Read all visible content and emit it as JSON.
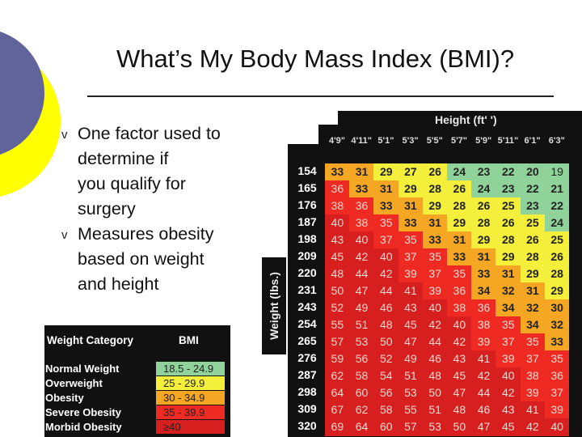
{
  "slide": {
    "title": "What’s My Body Mass Index (BMI)?",
    "bullets": [
      {
        "lines": [
          "One factor used to",
          "determine if",
          "you qualify for",
          "surgery"
        ]
      },
      {
        "lines": [
          "Measures obesity",
          "based on weight",
          "and height"
        ]
      }
    ],
    "bullet_marker": "v"
  },
  "legend": {
    "header": {
      "category": "Weight Category",
      "bmi": "BMI"
    },
    "rows": [
      {
        "category": "Normal Weight",
        "range": "18.5 - 24.9",
        "color": "#8fd29a"
      },
      {
        "category": "Overweight",
        "range": "25 - 29.9",
        "color": "#f4ef3a"
      },
      {
        "category": "Obesity",
        "range": "30 - 34.9",
        "color": "#f5a623"
      },
      {
        "category": "Severe Obesity",
        "range": "35 - 39.9",
        "color": "#ee2a22"
      },
      {
        "category": "Morbid Obesity",
        "range": "≥40",
        "color": "#d71f1f"
      }
    ]
  },
  "bmi_table": {
    "height_title": "Height (ft' ')",
    "weight_title": "Weight (lbs.)",
    "heights": [
      "4'9\"",
      "4'11\"",
      "5'1\"",
      "5'3\"",
      "5'5\"",
      "5'7\"",
      "5'9\"",
      "5'11\"",
      "6'1\"",
      "6'3\""
    ],
    "weights": [
      "154",
      "165",
      "176",
      "187",
      "198",
      "209",
      "220",
      "231",
      "243",
      "254",
      "265",
      "276",
      "287",
      "298",
      "309",
      "320"
    ],
    "values": [
      [
        33,
        31,
        29,
        27,
        26,
        24,
        23,
        22,
        20,
        19
      ],
      [
        36,
        33,
        31,
        29,
        28,
        26,
        24,
        23,
        22,
        21
      ],
      [
        38,
        36,
        33,
        31,
        29,
        28,
        26,
        25,
        23,
        22
      ],
      [
        40,
        38,
        35,
        33,
        31,
        29,
        28,
        26,
        25,
        24
      ],
      [
        43,
        40,
        37,
        35,
        33,
        31,
        29,
        28,
        26,
        25
      ],
      [
        45,
        42,
        40,
        37,
        35,
        33,
        31,
        29,
        28,
        26
      ],
      [
        48,
        44,
        42,
        39,
        37,
        35,
        33,
        31,
        29,
        28
      ],
      [
        50,
        47,
        44,
        41,
        39,
        36,
        34,
        32,
        31,
        29
      ],
      [
        52,
        49,
        46,
        43,
        40,
        38,
        36,
        34,
        32,
        30
      ],
      [
        55,
        51,
        48,
        45,
        42,
        40,
        38,
        35,
        34,
        32
      ],
      [
        57,
        53,
        50,
        47,
        44,
        42,
        39,
        37,
        35,
        33
      ],
      [
        59,
        56,
        52,
        49,
        46,
        43,
        41,
        39,
        37,
        35
      ],
      [
        62,
        58,
        54,
        51,
        48,
        45,
        42,
        40,
        38,
        36
      ],
      [
        64,
        60,
        56,
        53,
        50,
        47,
        44,
        42,
        39,
        37
      ],
      [
        67,
        62,
        58,
        55,
        51,
        48,
        46,
        43,
        41,
        39
      ],
      [
        69,
        64,
        60,
        57,
        53,
        50,
        47,
        45,
        42,
        40
      ]
    ],
    "colors": {
      "normal": "#8fd29a",
      "overweight": "#f4ef3a",
      "obesity": "#f5a623",
      "severe": "#ee2a22",
      "morbid": "#d71f1f"
    }
  }
}
